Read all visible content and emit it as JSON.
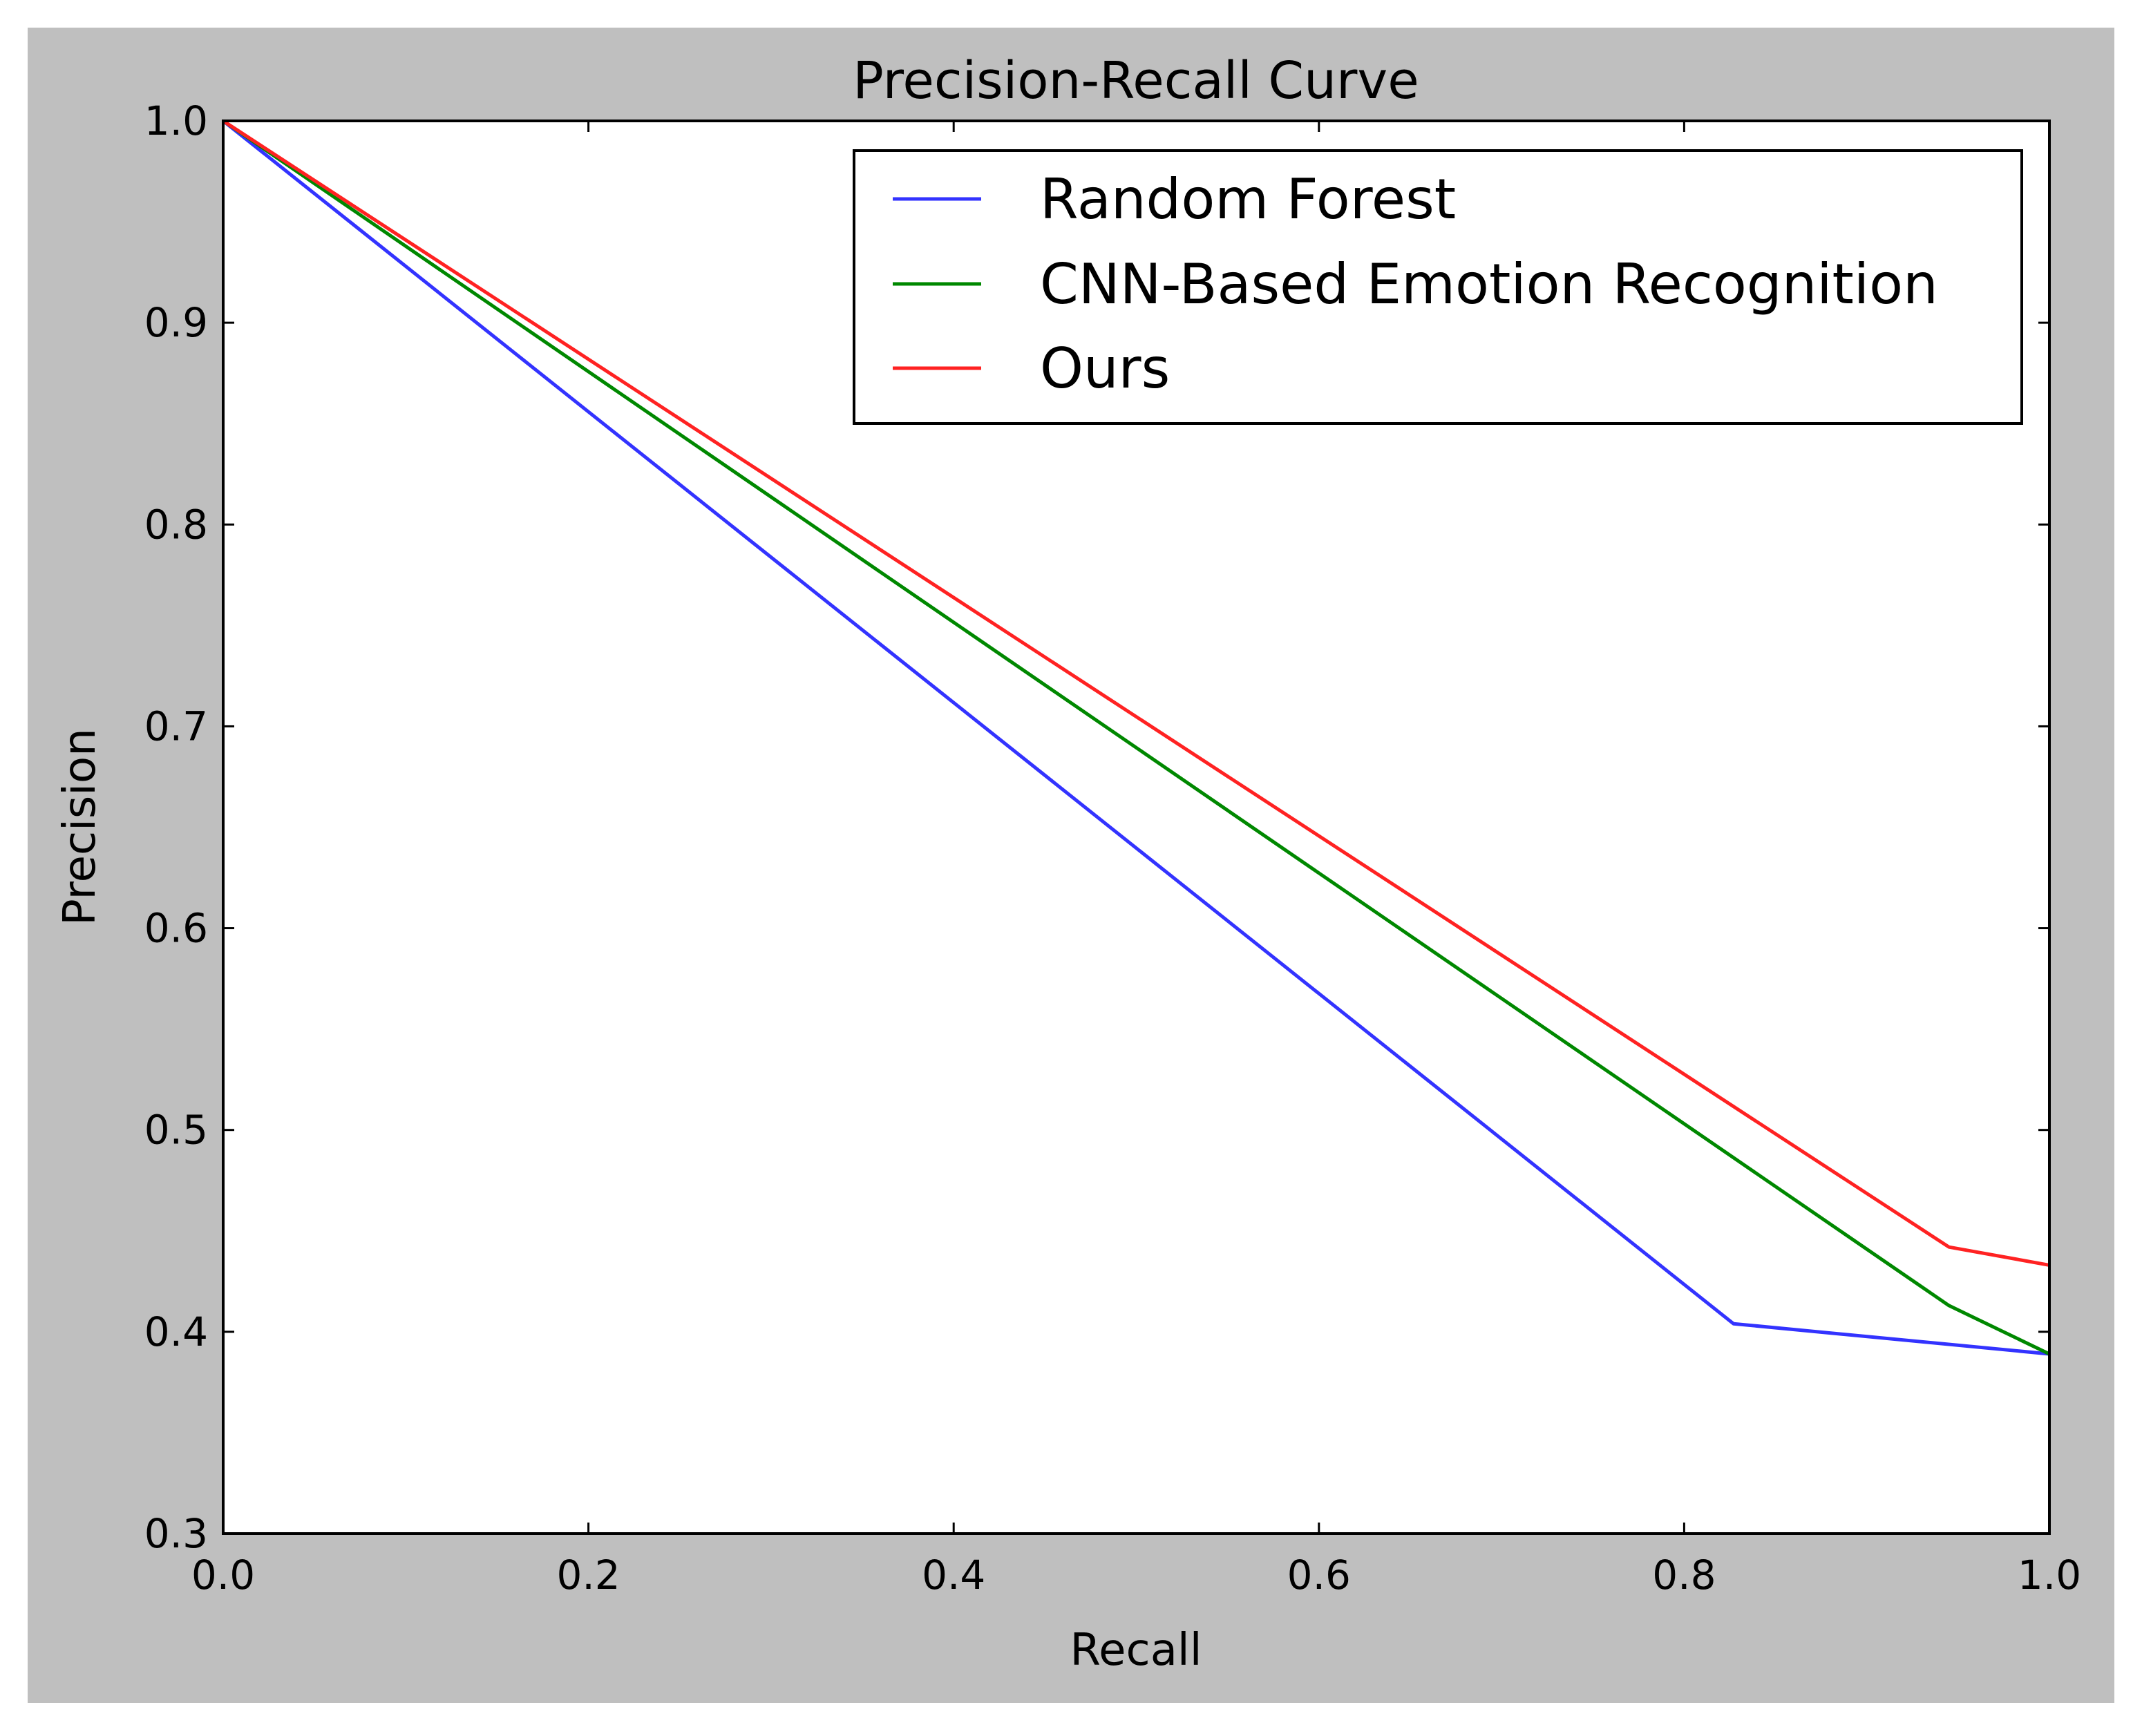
{
  "chart_data": {
    "type": "line",
    "title": "Precision-Recall Curve",
    "xlabel": "Recall",
    "ylabel": "Precision",
    "xlim": [
      0.0,
      1.0
    ],
    "ylim": [
      0.3,
      1.0
    ],
    "xticks": [
      0.0,
      0.2,
      0.4,
      0.6,
      0.8,
      1.0
    ],
    "xtick_labels": [
      "0.0",
      "0.2",
      "0.4",
      "0.6",
      "0.8",
      "1.0"
    ],
    "yticks": [
      0.3,
      0.4,
      0.5,
      0.6,
      0.7,
      0.8,
      0.9,
      1.0
    ],
    "ytick_labels": [
      "0.3",
      "0.4",
      "0.5",
      "0.6",
      "0.7",
      "0.8",
      "0.9",
      "1.0"
    ],
    "grid": false,
    "legend_position": "top-right",
    "background_color": "#bfbfbf",
    "plot_background": "#ffffff",
    "series": [
      {
        "name": "Random Forest",
        "color": "#3333ff",
        "x": [
          0.0,
          0.827,
          1.0
        ],
        "y": [
          1.0,
          0.404,
          0.389
        ]
      },
      {
        "name": "CNN-Based Emotion Recognition",
        "color": "#008800",
        "x": [
          0.0,
          0.945,
          1.0
        ],
        "y": [
          1.0,
          0.413,
          0.389
        ]
      },
      {
        "name": "Ours",
        "color": "#ff2222",
        "x": [
          0.0,
          0.945,
          1.0
        ],
        "y": [
          1.0,
          0.442,
          0.433
        ]
      }
    ]
  }
}
